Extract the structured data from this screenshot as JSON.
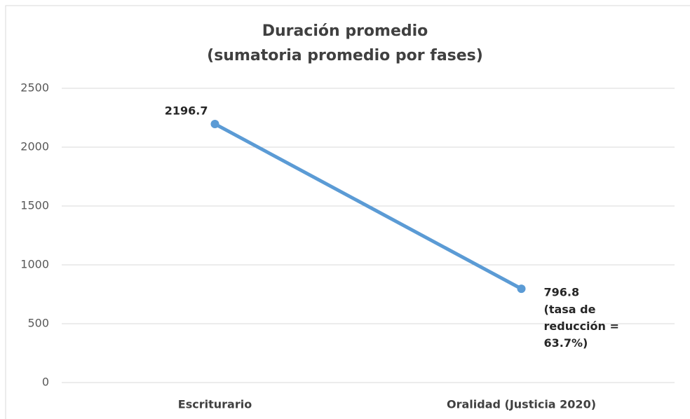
{
  "chart_data": {
    "type": "line",
    "title": "Duración promedio",
    "subtitle": "(sumatoria promedio por fases)",
    "categories": [
      "Escriturario",
      "Oralidad (Justicia 2020)"
    ],
    "values": [
      2196.7,
      796.8
    ],
    "value_labels": [
      "2196.7",
      "796.8"
    ],
    "annotation": "(tasa de reducción = 63.7%)",
    "color": "#5b9bd5",
    "ylim": [
      0,
      2500
    ],
    "yticks": [
      0,
      500,
      1000,
      1500,
      2000,
      2500
    ],
    "grid": true
  }
}
